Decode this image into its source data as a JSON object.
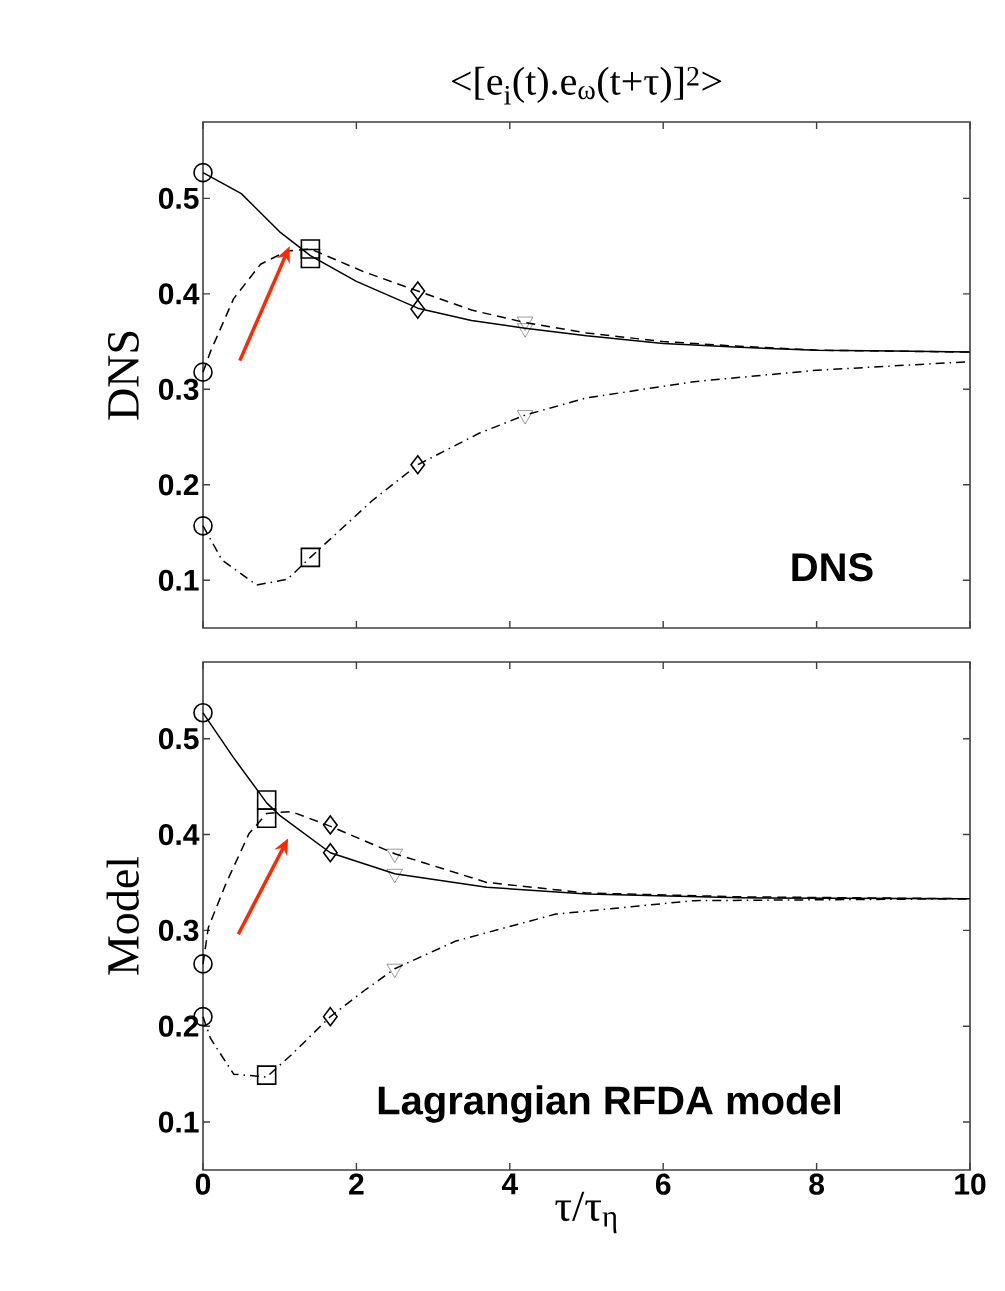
{
  "chart_data": [
    {
      "type": "line",
      "title": "<[e$_{i}$(t).e$_{ω}$(t+τ)]$^{2}$>",
      "ylabel": "DNS",
      "annotations": [
        "DNS"
      ],
      "xlim": [
        0,
        10
      ],
      "ylim": [
        0.05,
        0.58
      ],
      "xticks": [
        0,
        2,
        4,
        6,
        8,
        10
      ],
      "yticks": [
        0.1,
        0.2,
        0.3,
        0.4,
        0.5
      ],
      "tick_labels": "y",
      "marker": "none",
      "series": [
        {
          "color": "#000000",
          "line_style": "solid",
          "x": [
            0,
            0.5,
            1.0,
            1.4,
            2,
            2.8,
            3.5,
            4.2,
            5,
            6,
            7,
            8,
            9,
            10
          ],
          "values": [
            0.527,
            0.505,
            0.465,
            0.44,
            0.413,
            0.385,
            0.372,
            0.364,
            0.356,
            0.348,
            0.344,
            0.341,
            0.34,
            0.339
          ]
        },
        {
          "color": "#000000",
          "line_style": "dashed",
          "x": [
            0,
            0.1,
            0.4,
            0.75,
            1.1,
            1.4,
            2.1,
            2.8,
            3.5,
            4.2,
            5,
            6,
            7,
            8,
            10
          ],
          "values": [
            0.318,
            0.34,
            0.395,
            0.431,
            0.445,
            0.447,
            0.423,
            0.403,
            0.383,
            0.37,
            0.359,
            0.35,
            0.345,
            0.341,
            0.339
          ]
        },
        {
          "color": "#000000",
          "line_style": "dashdot",
          "x": [
            0,
            0.25,
            0.7,
            1.1,
            1.4,
            2.2,
            2.8,
            3.6,
            4.2,
            5,
            6.4,
            8,
            10
          ],
          "values": [
            0.157,
            0.121,
            0.095,
            0.101,
            0.124,
            0.183,
            0.221,
            0.254,
            0.273,
            0.291,
            0.308,
            0.32,
            0.329
          ]
        },
        {
          "type": "scatter",
          "color": "#000000",
          "marker": "circle",
          "x": [
            0,
            0,
            0
          ],
          "values": [
            0.527,
            0.318,
            0.157
          ]
        },
        {
          "type": "scatter",
          "color": "#000000",
          "marker": "square",
          "x": [
            1.4,
            1.4,
            1.4
          ],
          "values": [
            0.437,
            0.447,
            0.124
          ]
        },
        {
          "type": "scatter",
          "color": "#000000",
          "marker": "diamond",
          "x": [
            2.8,
            2.8,
            2.8
          ],
          "values": [
            0.403,
            0.384,
            0.221
          ]
        },
        {
          "type": "scatter",
          "color": "#000000",
          "marker": "triangle",
          "x": [
            4.2,
            4.2,
            4.2
          ],
          "values": [
            0.371,
            0.364,
            0.273
          ]
        }
      ]
    },
    {
      "type": "line",
      "ylabel": "Model",
      "xlabel": "τ/τ$_{η}$",
      "annotations": [
        "Lagrangian RFDA model"
      ],
      "xlim": [
        0,
        10
      ],
      "ylim": [
        0.05,
        0.58
      ],
      "xticks": [
        0,
        2,
        4,
        6,
        8,
        10
      ],
      "yticks": [
        0.1,
        0.2,
        0.3,
        0.4,
        0.5
      ],
      "marker": "none",
      "series": [
        {
          "color": "#000000",
          "line_style": "solid",
          "x": [
            0,
            0.4,
            0.83,
            1.0,
            1.66,
            2.5,
            3.7,
            5,
            7,
            10
          ],
          "values": [
            0.527,
            0.48,
            0.433,
            0.42,
            0.381,
            0.359,
            0.345,
            0.338,
            0.334,
            0.333
          ]
        },
        {
          "color": "#000000",
          "line_style": "dashed",
          "x": [
            0,
            0.07,
            0.3,
            0.6,
            0.83,
            1.15,
            1.68,
            2.5,
            2.9,
            3.7,
            5,
            7,
            10
          ],
          "values": [
            0.265,
            0.303,
            0.349,
            0.401,
            0.422,
            0.424,
            0.408,
            0.38,
            0.37,
            0.35,
            0.339,
            0.335,
            0.333
          ]
        },
        {
          "color": "#000000",
          "line_style": "dashdot",
          "x": [
            0,
            0.1,
            0.4,
            0.83,
            1.15,
            1.66,
            2.1,
            2.5,
            3.3,
            4.6,
            6.4,
            10
          ],
          "values": [
            0.21,
            0.187,
            0.15,
            0.147,
            0.17,
            0.21,
            0.237,
            0.26,
            0.289,
            0.317,
            0.331,
            0.333
          ]
        },
        {
          "type": "scatter",
          "color": "#000000",
          "marker": "circle",
          "x": [
            0,
            0,
            0
          ],
          "values": [
            0.527,
            0.265,
            0.21
          ]
        },
        {
          "type": "scatter",
          "color": "#000000",
          "marker": "square",
          "x": [
            0.83,
            0.83,
            0.83
          ],
          "values": [
            0.436,
            0.417,
            0.149
          ]
        },
        {
          "type": "scatter",
          "color": "#000000",
          "marker": "diamond",
          "x": [
            1.66,
            1.66,
            1.66
          ],
          "values": [
            0.41,
            0.381,
            0.21
          ]
        },
        {
          "type": "scatter",
          "color": "#000000",
          "marker": "triangle",
          "x": [
            2.5,
            2.5,
            2.5
          ],
          "values": [
            0.38,
            0.359,
            0.26
          ]
        }
      ]
    }
  ]
}
